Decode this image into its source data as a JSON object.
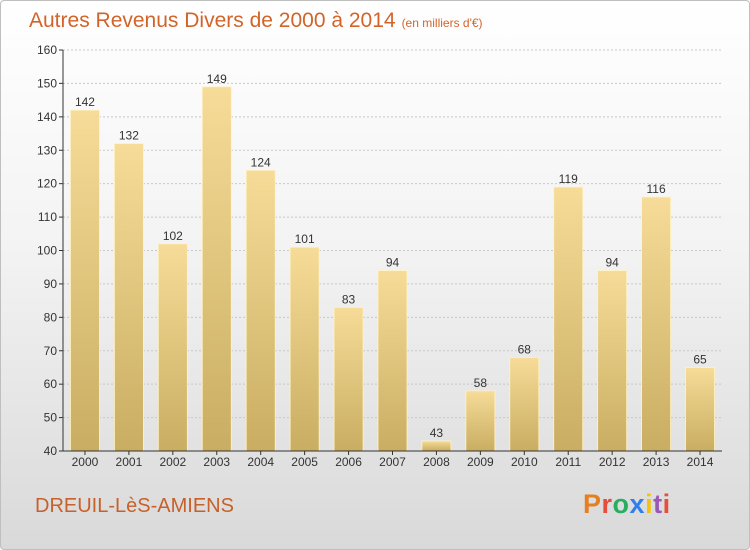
{
  "chart_title": "Autres Revenus Divers de 2000 à 2014",
  "chart_subtitle": "(en milliers d'€)",
  "location": "DREUIL-LèS-AMIENS",
  "brand": "Proxiti",
  "colors": {
    "title": "#d2642a",
    "bar_top": "#f6dc98",
    "bar_bottom": "#c9ad62",
    "grid": "#c8c8c8",
    "axis": "#333333",
    "brand_letters": [
      "#e67e22",
      "#e74c3c",
      "#27ae60",
      "#2f80ed",
      "#f1c40f",
      "#9b59b6",
      "#e74c3c"
    ]
  },
  "chart_data": {
    "type": "bar",
    "title": "Autres Revenus Divers de 2000 à 2014",
    "subtitle": "(en milliers d'€)",
    "xlabel": "",
    "ylabel": "",
    "categories": [
      "2000",
      "2001",
      "2002",
      "2003",
      "2004",
      "2005",
      "2006",
      "2007",
      "2008",
      "2009",
      "2010",
      "2011",
      "2012",
      "2013",
      "2014"
    ],
    "values": [
      142,
      132,
      102,
      149,
      124,
      101,
      83,
      94,
      43,
      58,
      68,
      119,
      94,
      116,
      65
    ],
    "ylim": [
      40,
      160
    ],
    "yticks": [
      40,
      50,
      60,
      70,
      80,
      90,
      100,
      110,
      120,
      130,
      140,
      150,
      160
    ],
    "grid": true,
    "data_labels": true
  }
}
